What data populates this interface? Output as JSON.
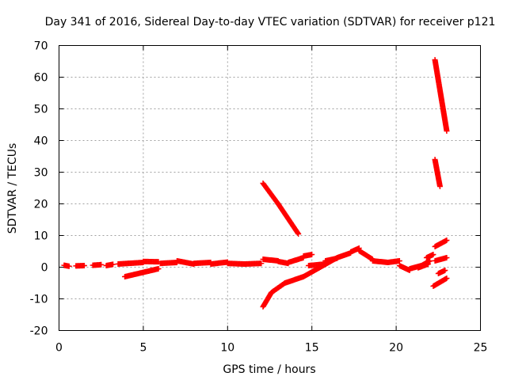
{
  "chart_data": {
    "type": "scatter",
    "title": "Day 341 of 2016, Sidereal Day-to-day VTEC variation (SDTVAR) for receiver p121",
    "xlabel": "GPS time / hours",
    "ylabel": "SDTVAR / TECUs",
    "xlim": [
      0,
      25
    ],
    "ylim": [
      -20,
      70
    ],
    "xticks": [
      0,
      5,
      10,
      15,
      20,
      25
    ],
    "yticks": [
      -20,
      -10,
      0,
      10,
      20,
      30,
      40,
      50,
      60,
      70
    ],
    "grid": true,
    "marker": "plus",
    "color": "#ff0000",
    "series": [
      {
        "segments": [
          [
            0.3,
            0.6,
            0.6,
            0.3
          ],
          [
            1.0,
            0.4,
            1.5,
            0.5
          ],
          [
            2.0,
            0.6,
            2.5,
            0.8
          ],
          [
            2.8,
            0.5,
            3.2,
            0.9
          ],
          [
            3.5,
            1.0,
            5.0,
            1.5
          ],
          [
            5.0,
            1.8,
            5.9,
            1.7
          ]
        ]
      },
      {
        "segments": [
          [
            3.9,
            -3.0,
            5.9,
            -0.5
          ]
        ]
      },
      {
        "segments": [
          [
            6.0,
            1.2,
            7.0,
            1.5
          ],
          [
            7.0,
            2.0,
            8.0,
            1.0
          ],
          [
            8.0,
            1.2,
            9.0,
            1.5
          ],
          [
            9.0,
            1.0,
            10.0,
            1.6
          ],
          [
            10.0,
            1.2,
            11.0,
            1.0
          ],
          [
            11.0,
            1.0,
            12.0,
            1.2
          ]
        ]
      },
      {
        "segments": [
          [
            12.1,
            2.5,
            13.0,
            2.0
          ],
          [
            13.0,
            1.8,
            13.6,
            1.2
          ],
          [
            13.6,
            1.5,
            14.5,
            3.0
          ],
          [
            14.5,
            3.5,
            15.0,
            4.0
          ]
        ]
      },
      {
        "segments": [
          [
            12.1,
            26.5,
            13.0,
            20.0
          ],
          [
            13.0,
            20.0,
            14.2,
            10.5
          ]
        ]
      },
      {
        "segments": [
          [
            12.1,
            -12.5,
            12.6,
            -8.0
          ],
          [
            12.6,
            -8.0,
            13.4,
            -5.0
          ],
          [
            13.4,
            -5.0,
            14.5,
            -3.0
          ],
          [
            14.5,
            -3.0,
            15.5,
            0.0
          ],
          [
            15.5,
            0.0,
            16.5,
            3.0
          ]
        ]
      },
      {
        "segments": [
          [
            14.8,
            0.5,
            15.8,
            1.0
          ],
          [
            15.8,
            2.0,
            16.5,
            2.8
          ],
          [
            16.5,
            3.0,
            17.3,
            4.5
          ],
          [
            17.3,
            4.8,
            17.8,
            6.0
          ],
          [
            17.8,
            5.2,
            18.6,
            2.5
          ]
        ]
      },
      {
        "segments": [
          [
            18.6,
            2.0,
            19.5,
            1.5
          ],
          [
            19.5,
            1.5,
            20.2,
            2.0
          ],
          [
            20.2,
            0.5,
            20.8,
            -1.0
          ],
          [
            20.8,
            -0.5,
            21.5,
            0.5
          ],
          [
            21.5,
            0.5,
            22.0,
            2.0
          ]
        ]
      },
      {
        "segments": [
          [
            22.3,
            65.5,
            23.0,
            43.0
          ]
        ]
      },
      {
        "segments": [
          [
            22.3,
            34.0,
            22.6,
            25.5
          ]
        ]
      },
      {
        "segments": [
          [
            22.3,
            6.5,
            23.0,
            8.5
          ],
          [
            22.3,
            2.0,
            23.0,
            3.0
          ],
          [
            22.5,
            -2.0,
            22.9,
            -1.0
          ],
          [
            22.2,
            -6.0,
            23.0,
            -3.5
          ]
        ]
      },
      {
        "segments": [
          [
            21.8,
            3.0,
            22.2,
            4.0
          ],
          [
            21.3,
            -0.2,
            21.9,
            1.0
          ]
        ]
      }
    ]
  }
}
